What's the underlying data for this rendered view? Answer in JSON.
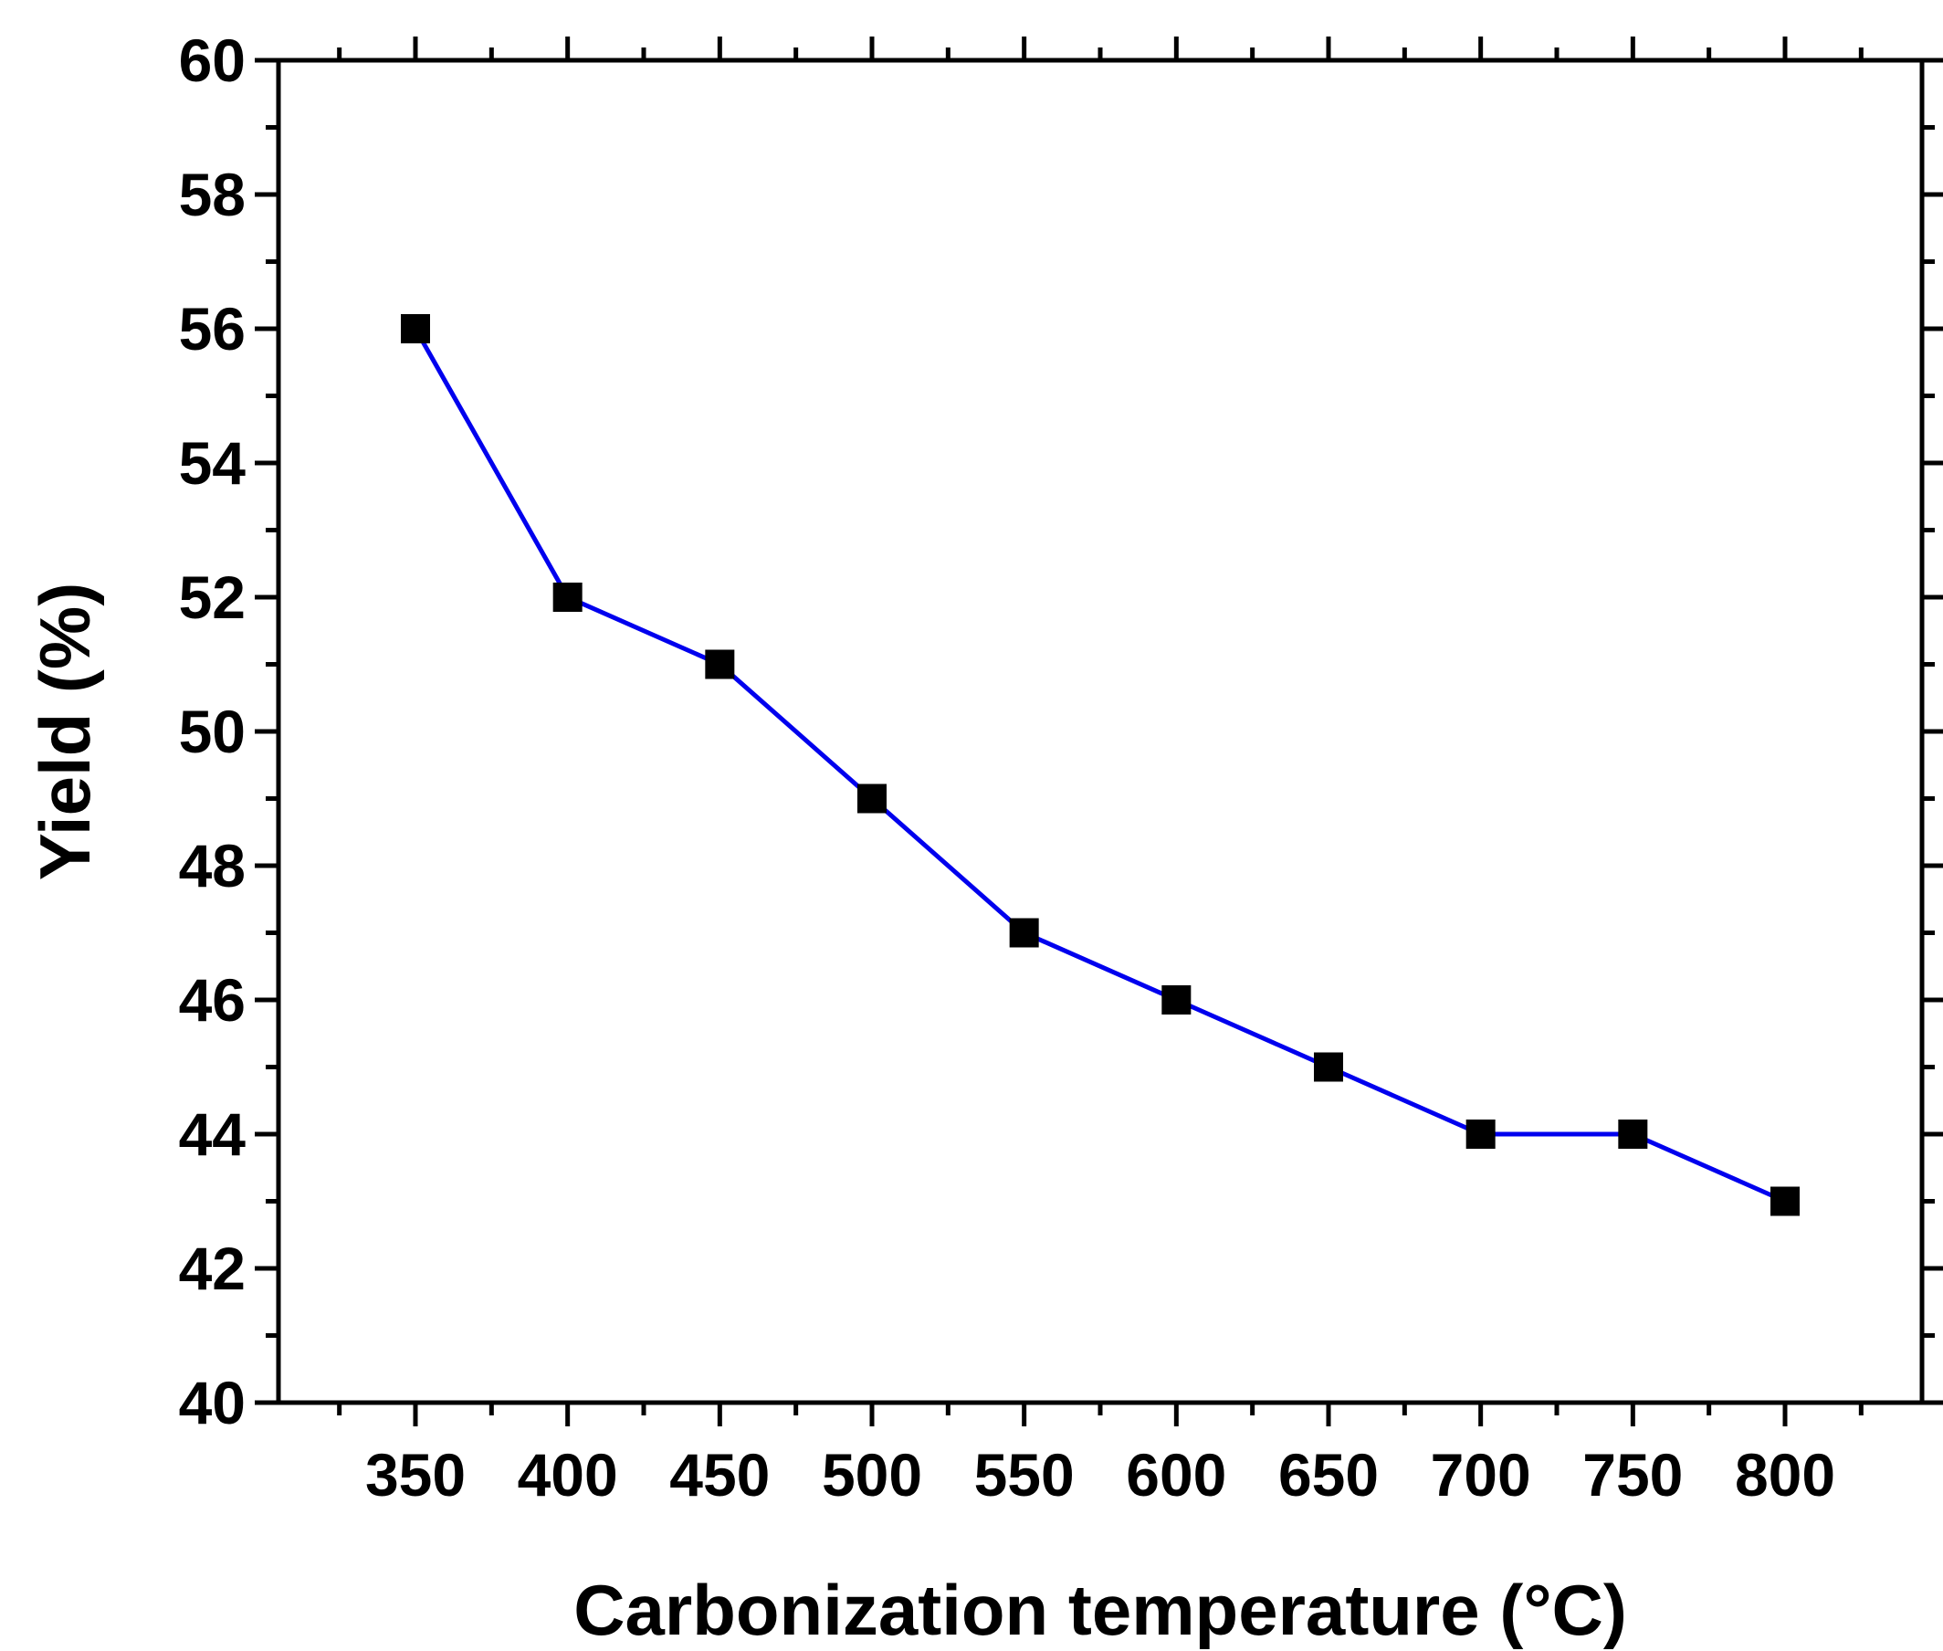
{
  "chart_data": {
    "type": "line",
    "title": "",
    "xlabel": "Carbonization temperature (°C)",
    "ylabel": "Yield (%)",
    "x": [
      350,
      400,
      450,
      500,
      550,
      600,
      650,
      700,
      750,
      800
    ],
    "series": [
      {
        "name": "Yield",
        "values": [
          56,
          52,
          51,
          49,
          47,
          46,
          45,
          44,
          44,
          43
        ],
        "line_color": "#0000ee",
        "marker_color": "#000000",
        "marker": "square"
      }
    ],
    "xlim": [
      305,
      845
    ],
    "ylim": [
      40,
      60
    ],
    "x_ticks": [
      "350",
      "400",
      "450",
      "500",
      "550",
      "600",
      "650",
      "700",
      "750",
      "800"
    ],
    "y_ticks": [
      "40",
      "42",
      "44",
      "46",
      "48",
      "50",
      "52",
      "54",
      "56",
      "58",
      "60"
    ],
    "grid": false,
    "legend": "none"
  }
}
